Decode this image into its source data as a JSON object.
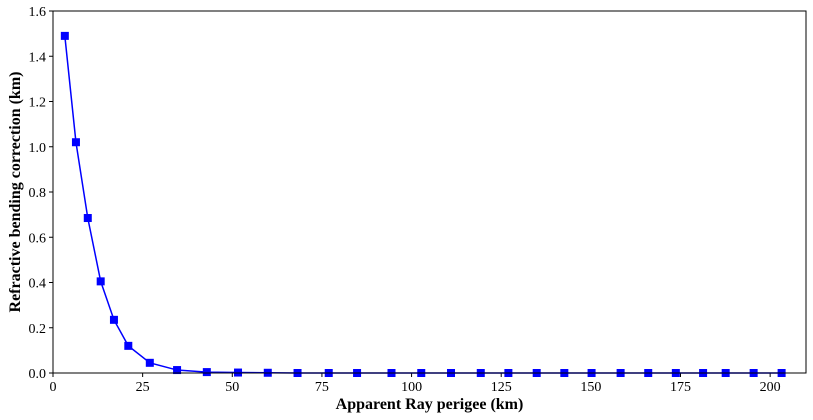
{
  "chart_data": {
    "type": "line",
    "xlabel": "Apparent Ray perigee (km)",
    "ylabel": "Refractive bending correction (km)",
    "xlim": [
      0,
      210
    ],
    "ylim": [
      0,
      1.6
    ],
    "xticks": [
      0,
      25,
      50,
      75,
      100,
      125,
      150,
      175,
      200
    ],
    "yticks": [
      0.0,
      0.2,
      0.4,
      0.6,
      0.8,
      1.0,
      1.2,
      1.4,
      1.6
    ],
    "xtick_labels": [
      "0",
      "25",
      "50",
      "75",
      "100",
      "125",
      "150",
      "175",
      "200"
    ],
    "ytick_labels": [
      "0.0",
      "0.2",
      "0.4",
      "0.6",
      "0.8",
      "1.0",
      "1.2",
      "1.4",
      "1.6"
    ],
    "grid": false,
    "series": [
      {
        "color": "#0000ff",
        "marker": "square",
        "x": [
          3.3,
          6.4,
          9.7,
          13.3,
          17.0,
          21.0,
          27.0,
          34.6,
          42.9,
          51.6,
          59.9,
          68.2,
          76.9,
          84.8,
          94.4,
          102.7,
          111.0,
          119.3,
          127.0,
          134.9,
          142.6,
          150.2,
          158.3,
          166.0,
          173.7,
          181.3,
          187.6,
          195.4,
          203.2
        ],
        "y": [
          1.49,
          1.02,
          0.685,
          0.405,
          0.235,
          0.12,
          0.045,
          0.013,
          0.004,
          0.002,
          0.001,
          0,
          0,
          0,
          0,
          0,
          0,
          0,
          0,
          0,
          0,
          0,
          0,
          0,
          0,
          0,
          0,
          0,
          0
        ]
      }
    ]
  }
}
